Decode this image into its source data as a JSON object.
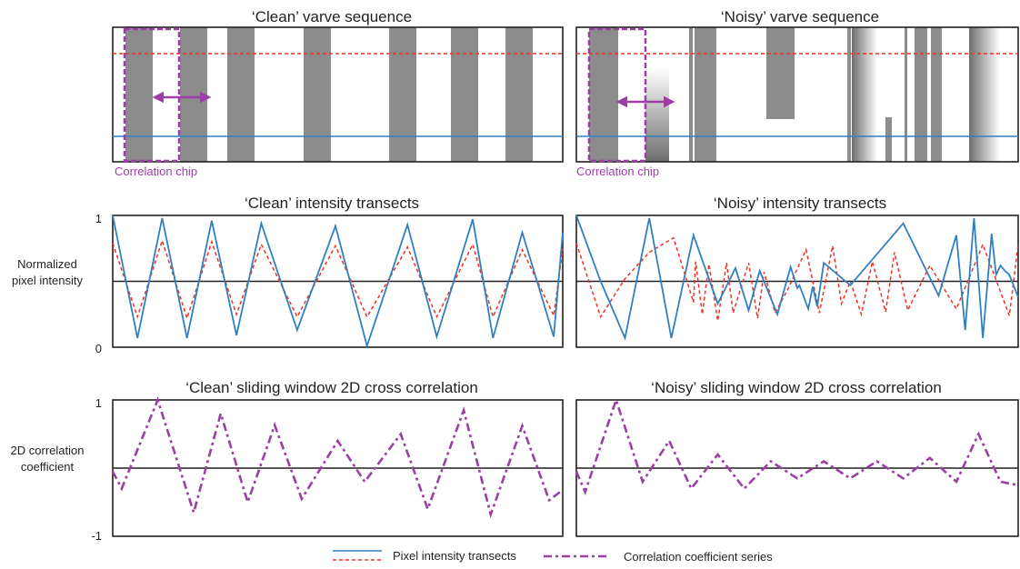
{
  "top_row": {
    "clean_title": "‘Clean’ varve sequence",
    "noisy_title": "‘Noisy’ varve sequence",
    "chip_label": "Correlation chip"
  },
  "middle_row": {
    "clean_title": "‘Clean’ intensity transects",
    "noisy_title": "‘Noisy’ intensity transects",
    "ylabel_line1": "Normalized",
    "ylabel_line2": "pixel intensity",
    "tick_top": "1",
    "tick_bottom": "0"
  },
  "bottom_row": {
    "clean_title": "‘Clean’ sliding window 2D cross correlation",
    "noisy_title": "‘Noisy’ sliding window 2D cross correlation",
    "ylabel_line1": "2D correlation",
    "ylabel_line2": "coefficient",
    "tick_top": "1",
    "tick_bottom": "-1"
  },
  "legend": {
    "transect_label": "Pixel intensity transects",
    "correlation_label": "Correlation coefficient series"
  },
  "colors": {
    "blue": "#2f7fc1",
    "red": "#ee3124",
    "purple": "#9b3fa5",
    "grey": "#8c8c8c",
    "frame": "#231f20"
  },
  "chart_data": [
    {
      "type": "line",
      "title": "‘Clean’ intensity transects",
      "ylabel": "Normalized pixel intensity",
      "ylim": [
        0,
        1
      ],
      "series": [
        {
          "x": [
            0,
            0.055,
            0.11,
            0.165,
            0.22,
            0.275,
            0.33,
            0.41,
            0.495,
            0.565,
            0.655,
            0.72,
            0.8,
            0.845,
            0.91,
            0.98,
            1
          ],
          "y": [
            1,
            0.07,
            0.98,
            0.07,
            0.96,
            0.09,
            0.94,
            0.13,
            0.92,
            0.01,
            0.93,
            0.08,
            0.97,
            0.07,
            0.87,
            0.08,
            0.87
          ]
        },
        {
          "x": [
            0,
            0.055,
            0.11,
            0.165,
            0.22,
            0.275,
            0.33,
            0.41,
            0.495,
            0.565,
            0.655,
            0.72,
            0.8,
            0.845,
            0.91,
            0.98,
            1
          ],
          "y": [
            0.79,
            0.23,
            0.81,
            0.22,
            0.8,
            0.25,
            0.78,
            0.23,
            0.77,
            0.23,
            0.76,
            0.23,
            0.78,
            0.23,
            0.74,
            0.24,
            0.75
          ]
        }
      ]
    },
    {
      "type": "line",
      "title": "‘Noisy’ intensity transects",
      "ylabel": "Normalized pixel intensity",
      "ylim": [
        0,
        1
      ],
      "series": [
        {
          "x": [
            0,
            0.055,
            0.11,
            0.165,
            0.215,
            0.265,
            0.32,
            0.36,
            0.39,
            0.415,
            0.455,
            0.485,
            0.5,
            0.505,
            0.525,
            0.535,
            0.545,
            0.56,
            0.62,
            0.74,
            0.82,
            0.86,
            0.88,
            0.9,
            0.92,
            0.94,
            0.95,
            0.96,
            0.97,
            0.98,
            1
          ],
          "y": [
            1,
            0.5,
            0.07,
            0.98,
            0.07,
            0.85,
            0.33,
            0.6,
            0.28,
            0.58,
            0.25,
            0.61,
            0.45,
            0.47,
            0.29,
            0.46,
            0.31,
            0.64,
            0.47,
            0.94,
            0.39,
            0.85,
            0.13,
            0.98,
            0.07,
            0.86,
            0.55,
            0.62,
            0.58,
            0.55,
            0.38
          ]
        },
        {
          "x": [
            0,
            0.055,
            0.11,
            0.165,
            0.22,
            0.265,
            0.27,
            0.285,
            0.3,
            0.32,
            0.34,
            0.355,
            0.39,
            0.41,
            0.425,
            0.45,
            0.48,
            0.52,
            0.55,
            0.58,
            0.6,
            0.62,
            0.645,
            0.67,
            0.7,
            0.72,
            0.75,
            0.8,
            0.86,
            0.92,
            0.98,
            1
          ],
          "y": [
            0.79,
            0.23,
            0.52,
            0.72,
            0.83,
            0.34,
            0.65,
            0.25,
            0.63,
            0.2,
            0.64,
            0.26,
            0.64,
            0.22,
            0.57,
            0.26,
            0.45,
            0.74,
            0.26,
            0.77,
            0.33,
            0.5,
            0.25,
            0.65,
            0.27,
            0.72,
            0.28,
            0.62,
            0.29,
            0.78,
            0.24,
            0.78
          ]
        }
      ]
    },
    {
      "type": "line",
      "title": "‘Clean’ sliding window 2D cross correlation",
      "ylabel": "2D correlation coefficient",
      "ylim": [
        -1,
        1
      ],
      "series": [
        {
          "x": [
            0,
            0.02,
            0.1,
            0.18,
            0.24,
            0.3,
            0.36,
            0.42,
            0.5,
            0.56,
            0.64,
            0.7,
            0.78,
            0.84,
            0.91,
            0.97,
            1
          ],
          "y": [
            -0.05,
            -0.3,
            1,
            -0.65,
            0.8,
            -0.5,
            0.63,
            -0.45,
            0.4,
            -0.2,
            0.5,
            -0.6,
            0.85,
            -0.68,
            0.62,
            -0.47,
            -0.32
          ]
        }
      ]
    },
    {
      "type": "line",
      "title": "‘Noisy’ sliding window 2D cross correlation",
      "ylabel": "2D correlation coefficient",
      "ylim": [
        -1,
        1
      ],
      "series": [
        {
          "x": [
            0,
            0.02,
            0.09,
            0.15,
            0.21,
            0.26,
            0.32,
            0.38,
            0.44,
            0.5,
            0.56,
            0.62,
            0.68,
            0.74,
            0.8,
            0.86,
            0.91,
            0.96,
            1
          ],
          "y": [
            -0.05,
            -0.35,
            1,
            -0.2,
            0.4,
            -0.3,
            0.2,
            -0.3,
            0.1,
            -0.15,
            0.1,
            -0.15,
            0.1,
            -0.15,
            0.15,
            -0.2,
            0.5,
            -0.2,
            -0.25
          ]
        }
      ]
    }
  ]
}
